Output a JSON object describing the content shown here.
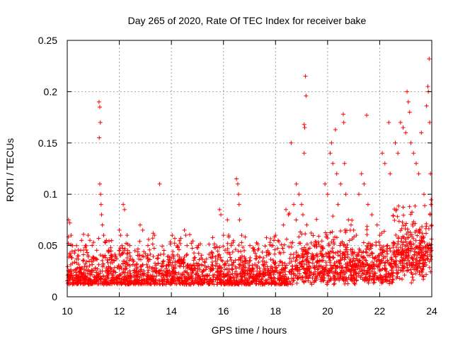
{
  "chart_data": {
    "type": "scatter",
    "title": "Day 265 of 2020, Rate Of TEC Index for receiver bake",
    "xlabel": "GPS time / hours",
    "ylabel": "ROTI / TECUs",
    "xlim": [
      10,
      24
    ],
    "ylim": [
      0,
      0.25
    ],
    "grid": true,
    "marker": "+",
    "color": "#ff0000",
    "x_ticks": [
      {
        "value": 10,
        "label": "10"
      },
      {
        "value": 12,
        "label": "12"
      },
      {
        "value": 14,
        "label": "14"
      },
      {
        "value": 16,
        "label": "16"
      },
      {
        "value": 18,
        "label": "18"
      },
      {
        "value": 20,
        "label": "20"
      },
      {
        "value": 22,
        "label": "22"
      },
      {
        "value": 24,
        "label": "24"
      }
    ],
    "y_ticks": [
      {
        "value": 0,
        "label": "0"
      },
      {
        "value": 0.05,
        "label": "0.05"
      },
      {
        "value": 0.1,
        "label": "0.1"
      },
      {
        "value": 0.15,
        "label": "0.15"
      },
      {
        "value": 0.2,
        "label": "0.2"
      },
      {
        "value": 0.25,
        "label": "0.25"
      }
    ],
    "series": [
      {
        "name": "ROTI",
        "points": [
          [
            10.05,
            0.075
          ],
          [
            10.1,
            0.072
          ],
          [
            10.15,
            0.06
          ],
          [
            10.2,
            0.05
          ],
          [
            10.3,
            0.045
          ],
          [
            10.4,
            0.04
          ],
          [
            10.55,
            0.055
          ],
          [
            10.7,
            0.05
          ],
          [
            10.8,
            0.06
          ],
          [
            11.0,
            0.035
          ],
          [
            11.22,
            0.19
          ],
          [
            11.25,
            0.185
          ],
          [
            11.27,
            0.17
          ],
          [
            11.23,
            0.155
          ],
          [
            11.25,
            0.11
          ],
          [
            11.28,
            0.1
          ],
          [
            11.3,
            0.09
          ],
          [
            11.32,
            0.08
          ],
          [
            11.35,
            0.07
          ],
          [
            11.4,
            0.06
          ],
          [
            11.5,
            0.055
          ],
          [
            11.6,
            0.045
          ],
          [
            11.7,
            0.04
          ],
          [
            11.8,
            0.035
          ],
          [
            12.0,
            0.065
          ],
          [
            12.05,
            0.06
          ],
          [
            12.1,
            0.05
          ],
          [
            12.2,
            0.045
          ],
          [
            12.15,
            0.09
          ],
          [
            12.2,
            0.085
          ],
          [
            12.3,
            0.06
          ],
          [
            12.4,
            0.05
          ],
          [
            12.6,
            0.045
          ],
          [
            12.8,
            0.07
          ],
          [
            12.9,
            0.065
          ],
          [
            13.1,
            0.05
          ],
          [
            13.3,
            0.062
          ],
          [
            13.35,
            0.06
          ],
          [
            13.55,
            0.11
          ],
          [
            13.7,
            0.035
          ],
          [
            13.9,
            0.03
          ],
          [
            14.1,
            0.025
          ],
          [
            14.3,
            0.03
          ],
          [
            14.5,
            0.065
          ],
          [
            14.55,
            0.06
          ],
          [
            14.6,
            0.05
          ],
          [
            14.8,
            0.03
          ],
          [
            15.0,
            0.025
          ],
          [
            15.3,
            0.02
          ],
          [
            15.5,
            0.025
          ],
          [
            15.7,
            0.03
          ],
          [
            15.85,
            0.085
          ],
          [
            15.9,
            0.08
          ],
          [
            16.0,
            0.06
          ],
          [
            16.15,
            0.075
          ],
          [
            16.2,
            0.06
          ],
          [
            16.3,
            0.05
          ],
          [
            16.5,
            0.115
          ],
          [
            16.55,
            0.11
          ],
          [
            16.58,
            0.1
          ],
          [
            16.6,
            0.09
          ],
          [
            16.62,
            0.075
          ],
          [
            16.7,
            0.06
          ],
          [
            16.8,
            0.045
          ],
          [
            17.0,
            0.035
          ],
          [
            17.3,
            0.03
          ],
          [
            17.5,
            0.035
          ],
          [
            17.7,
            0.045
          ],
          [
            17.9,
            0.05
          ],
          [
            18.0,
            0.06
          ],
          [
            18.1,
            0.055
          ],
          [
            18.3,
            0.07
          ],
          [
            18.4,
            0.085
          ],
          [
            18.5,
            0.08
          ],
          [
            18.6,
            0.15
          ],
          [
            18.7,
            0.09
          ],
          [
            18.8,
            0.11
          ],
          [
            18.9,
            0.1
          ],
          [
            19.0,
            0.09
          ],
          [
            19.05,
            0.08
          ],
          [
            19.1,
            0.168
          ],
          [
            19.12,
            0.165
          ],
          [
            19.15,
            0.215
          ],
          [
            19.17,
            0.196
          ],
          [
            19.1,
            0.14
          ],
          [
            19.2,
            0.07
          ],
          [
            19.4,
            0.04
          ],
          [
            19.6,
            0.035
          ],
          [
            19.8,
            0.04
          ],
          [
            19.9,
            0.11
          ],
          [
            20.0,
            0.1
          ],
          [
            20.1,
            0.14
          ],
          [
            20.15,
            0.15
          ],
          [
            20.2,
            0.13
          ],
          [
            20.3,
            0.163
          ],
          [
            20.35,
            0.12
          ],
          [
            20.4,
            0.09
          ],
          [
            20.5,
            0.11
          ],
          [
            20.6,
            0.178
          ],
          [
            20.62,
            0.17
          ],
          [
            20.65,
            0.13
          ],
          [
            20.7,
            0.1
          ],
          [
            20.8,
            0.075
          ],
          [
            20.9,
            0.07
          ],
          [
            21.0,
            0.065
          ],
          [
            21.1,
            0.06
          ],
          [
            21.2,
            0.1
          ],
          [
            21.3,
            0.12
          ],
          [
            21.4,
            0.11
          ],
          [
            21.5,
            0.177
          ],
          [
            21.55,
            0.09
          ],
          [
            21.7,
            0.08
          ],
          [
            21.9,
            0.07
          ],
          [
            22.0,
            0.06
          ],
          [
            22.1,
            0.14
          ],
          [
            22.2,
            0.13
          ],
          [
            22.35,
            0.17
          ],
          [
            22.4,
            0.12
          ],
          [
            22.6,
            0.15
          ],
          [
            22.7,
            0.14
          ],
          [
            22.8,
            0.17
          ],
          [
            22.9,
            0.165
          ],
          [
            23.0,
            0.16
          ],
          [
            23.05,
            0.2
          ],
          [
            23.1,
            0.19
          ],
          [
            23.15,
            0.18
          ],
          [
            23.2,
            0.15
          ],
          [
            23.3,
            0.14
          ],
          [
            23.4,
            0.13
          ],
          [
            23.5,
            0.12
          ],
          [
            23.6,
            0.16
          ],
          [
            23.7,
            0.1
          ],
          [
            23.8,
            0.186
          ],
          [
            23.85,
            0.205
          ],
          [
            23.87,
            0.2
          ],
          [
            23.9,
            0.232
          ],
          [
            23.92,
            0.17
          ],
          [
            23.95,
            0.12
          ],
          [
            23.97,
            0.09
          ]
        ]
      }
    ]
  }
}
